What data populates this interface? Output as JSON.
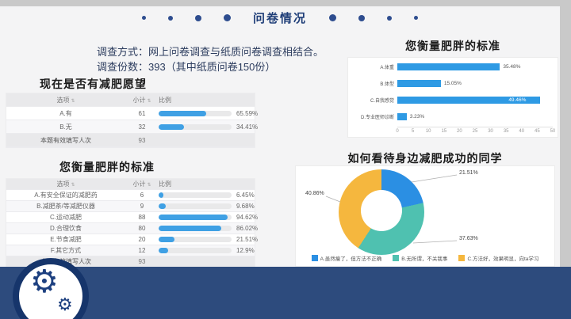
{
  "icons": {
    "sort": "⇅",
    "gear": "⚙"
  },
  "header": {
    "title": "问卷情况"
  },
  "intro": {
    "line1": "调查方式：网上问卷调查与纸质问卷调查相结合。",
    "line2": "调查份数：393（其中纸质问卷150份）"
  },
  "table_headers": {
    "option": "选项",
    "count": "小计",
    "ratio": "比例"
  },
  "table1": {
    "title": "现在是否有减肥愿望",
    "rows": [
      {
        "option": "A.有",
        "count": "61",
        "pct": 65.59,
        "pct_label": "65.59%"
      },
      {
        "option": "B.无",
        "count": "32",
        "pct": 34.41,
        "pct_label": "34.41%"
      }
    ],
    "footer_label": "本题有效填写人次",
    "footer_count": "93"
  },
  "table2": {
    "title": "您衡量肥胖的标准",
    "rows": [
      {
        "option": "A.有安全保证的减肥药",
        "count": "6",
        "pct": 6.45,
        "pct_label": "6.45%"
      },
      {
        "option": "B.减肥茶/等减肥仪器",
        "count": "9",
        "pct": 9.68,
        "pct_label": "9.68%"
      },
      {
        "option": "C.运动减肥",
        "count": "88",
        "pct": 94.62,
        "pct_label": "94.62%"
      },
      {
        "option": "D.合理饮食",
        "count": "80",
        "pct": 86.02,
        "pct_label": "86.02%"
      },
      {
        "option": "E.节食减肥",
        "count": "20",
        "pct": 21.51,
        "pct_label": "21.51%"
      },
      {
        "option": "F.其它方式",
        "count": "12",
        "pct": 12.9,
        "pct_label": "12.9%"
      }
    ],
    "footer_label": "本题有效填写人次",
    "footer_count": "93"
  },
  "chart_data": [
    {
      "type": "bar",
      "orientation": "horizontal",
      "title": "您衡量肥胖的标准",
      "categories": [
        "A.体重",
        "B.体型",
        "C.自我感觉",
        "D.专业医师诊断"
      ],
      "values": [
        33,
        14,
        46,
        3
      ],
      "value_labels": [
        "35.48%",
        "15.05%",
        "49.46%",
        "3.23%"
      ],
      "xlim": [
        0,
        50
      ],
      "xticks": [
        0,
        5,
        10,
        15,
        20,
        25,
        30,
        35,
        40,
        45,
        50
      ],
      "grid": false,
      "bar_color": "#2e9ae4"
    },
    {
      "type": "pie",
      "donut": true,
      "title": "如何看待身边减肥成功的同学",
      "slices": [
        {
          "label": "A.虽然瘦了，但方法不正确",
          "value": 21.51,
          "value_label": "21.51%",
          "color": "#2b8fe3"
        },
        {
          "label": "B.无所谓，不关我事",
          "value": 37.63,
          "value_label": "37.63%",
          "color": "#4fc1b0"
        },
        {
          "label": "C.方法好，效果明显，向ta学习",
          "value": 40.86,
          "value_label": "40.86%",
          "color": "#f5b73e"
        }
      ],
      "legend_position": "bottom",
      "start_angle_deg": 0
    }
  ],
  "colors": {
    "accent_navy": "#2d4b7d",
    "title_navy": "#1f3e78",
    "table_bar_blue": "#3fa0e4",
    "chart_bar_blue": "#2e9ae4",
    "donut_blue": "#2b8fe3",
    "donut_teal": "#4fc1b0",
    "donut_yellow": "#f5b73e"
  }
}
